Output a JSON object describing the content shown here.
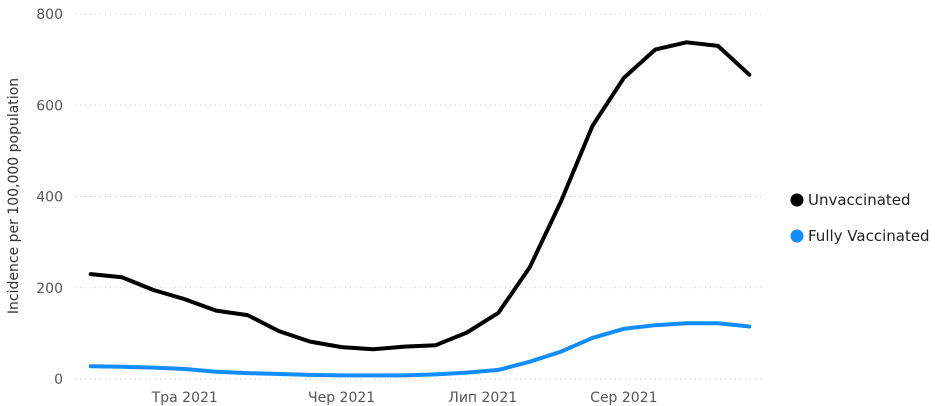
{
  "chart_data": {
    "type": "line",
    "ylabel": "Incidence per 100,000 population",
    "ylim": [
      0,
      800
    ],
    "y_ticks": [
      0,
      200,
      400,
      600,
      800
    ],
    "x_ticks": [
      {
        "label": "Тра 2021",
        "week": 3
      },
      {
        "label": "Чер 2021",
        "week": 8
      },
      {
        "label": "Лип 2021",
        "week": 12.5
      },
      {
        "label": "Сер 2021",
        "week": 17
      }
    ],
    "x_range": [
      -0.5,
      21.5
    ],
    "grid": true,
    "legend_position": "right",
    "series": [
      {
        "name": "Unvaccinated",
        "color": "#000000",
        "values": [
          230,
          223,
          195,
          175,
          150,
          140,
          105,
          82,
          70,
          65,
          71,
          74,
          102,
          145,
          245,
          390,
          555,
          660,
          722,
          738,
          730,
          667
        ]
      },
      {
        "name": "Fully Vaccinated",
        "color": "#118DFF",
        "values": [
          28,
          27,
          25,
          22,
          16,
          13,
          11,
          9,
          8,
          8,
          8,
          10,
          14,
          20,
          38,
          60,
          90,
          110,
          118,
          122,
          122,
          115
        ]
      }
    ]
  }
}
